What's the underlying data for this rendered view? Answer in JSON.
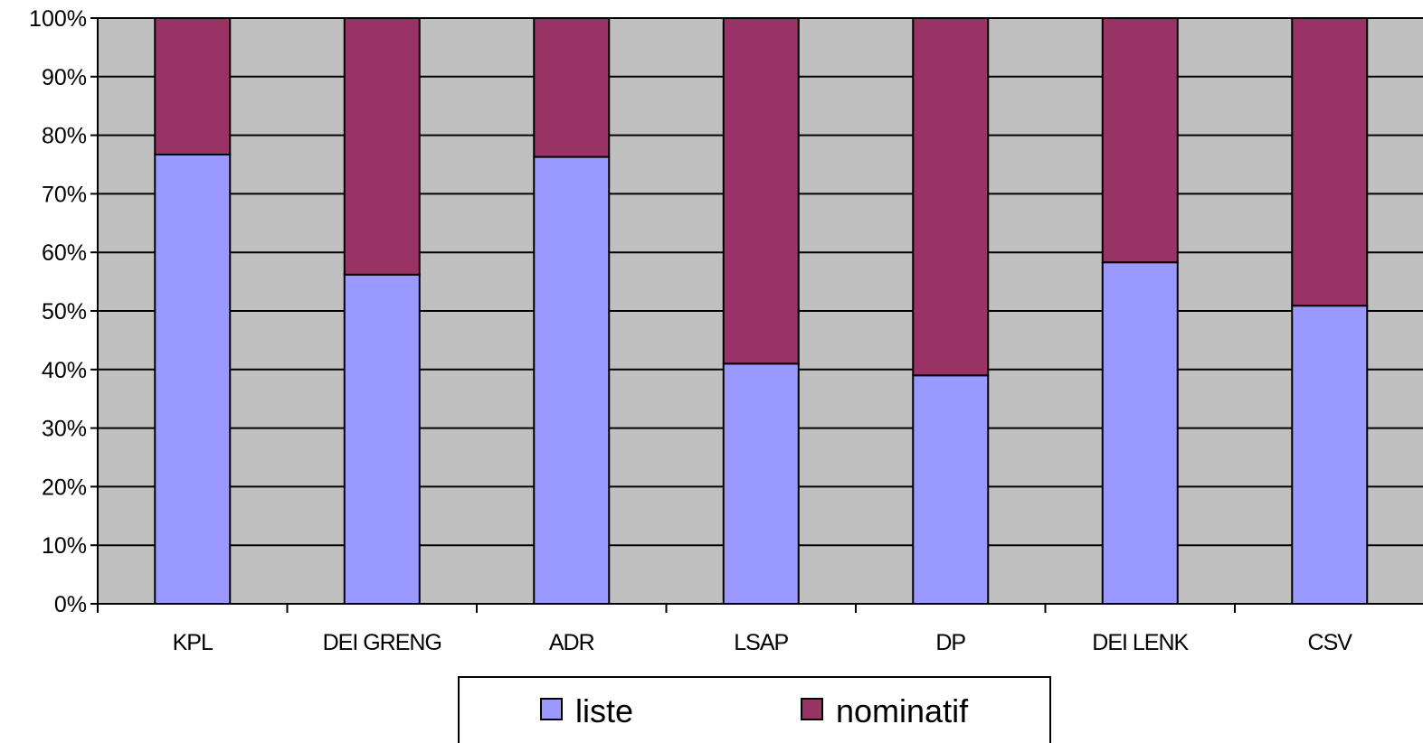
{
  "chart_data": {
    "type": "bar",
    "stacked": true,
    "normalized_percent": true,
    "categories": [
      "KPL",
      "DEI GRENG",
      "ADR",
      "LSAP",
      "DP",
      "DEI LENK",
      "CSV"
    ],
    "series": [
      {
        "name": "liste",
        "color": "#9999ff",
        "values": [
          76.7,
          56.2,
          76.3,
          41.0,
          39.0,
          58.3,
          50.9
        ]
      },
      {
        "name": "nominatif",
        "color": "#993366",
        "values": [
          23.3,
          43.8,
          23.7,
          59.0,
          61.0,
          41.7,
          49.1
        ]
      }
    ],
    "y_ticks": [
      "0%",
      "10%",
      "20%",
      "30%",
      "40%",
      "50%",
      "60%",
      "70%",
      "80%",
      "90%",
      "100%"
    ],
    "ylim": [
      0,
      100
    ],
    "grid": true,
    "plot_background": "#c0c0c0",
    "legend_position": "bottom"
  }
}
